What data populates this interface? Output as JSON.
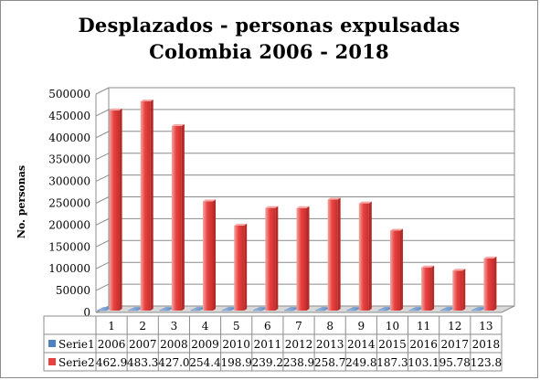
{
  "chart_data": {
    "type": "bar",
    "title": [
      "Desplazados - personas expulsadas",
      "Colombia 2006 - 2018"
    ],
    "ylabel": "No. personas",
    "xlabel": "",
    "categories": [
      "1",
      "2",
      "3",
      "4",
      "5",
      "6",
      "7",
      "8",
      "9",
      "10",
      "11",
      "12",
      "13"
    ],
    "ylim": [
      0,
      500000
    ],
    "yticks": [
      0,
      50000,
      100000,
      150000,
      200000,
      250000,
      300000,
      350000,
      400000,
      450000,
      500000
    ],
    "grid": true,
    "view": "3d",
    "legend": "data table below chart",
    "series": [
      {
        "name": "Serie1",
        "color": "#4f81bd",
        "values": [
          2006,
          2007,
          2008,
          2009,
          2010,
          2011,
          2012,
          2013,
          2014,
          2015,
          2016,
          2017,
          2018
        ],
        "table_labels": [
          "2006",
          "2007",
          "2008",
          "2009",
          "2010",
          "2011",
          "2012",
          "2013",
          "2014",
          "2015",
          "2016",
          "2017",
          "2018"
        ]
      },
      {
        "name": "Serie2",
        "color": "#e8413f",
        "values": [
          462900,
          483300,
          427000,
          254400,
          198900,
          239200,
          238900,
          258700,
          249800,
          187300,
          103100,
          95780,
          123800
        ],
        "table_labels": [
          "462.9",
          "483.3",
          "427.0",
          "254.4",
          "198.9",
          "239.2",
          "238.9",
          "258.7",
          "249.8",
          "187.3",
          "103.1",
          "95.78",
          "123.8"
        ]
      }
    ]
  }
}
